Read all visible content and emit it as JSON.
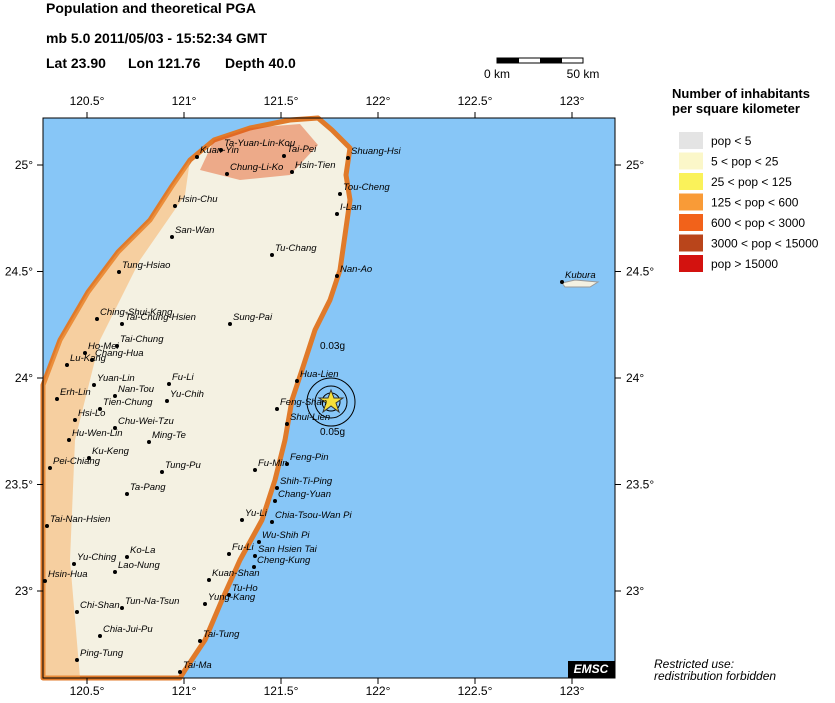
{
  "header": {
    "title": "Population and theoretical PGA",
    "event": "mb 5.0  2011/05/03 - 15:52:34 GMT",
    "lat": "Lat 23.90",
    "lon": "Lon 121.76",
    "depth": "Depth  40.0"
  },
  "scale": {
    "start": "0 km",
    "end": "50 km"
  },
  "map": {
    "lon_ticks": [
      {
        "value": 120.5,
        "label": "120.5°"
      },
      {
        "value": 121,
        "label": "121°"
      },
      {
        "value": 121.5,
        "label": "121.5°"
      },
      {
        "value": 122,
        "label": "122°"
      },
      {
        "value": 122.5,
        "label": "122.5°"
      },
      {
        "value": 123,
        "label": "123°"
      }
    ],
    "lat_ticks": [
      {
        "value": 25,
        "label": "25°"
      },
      {
        "value": 24.5,
        "label": "24.5°"
      },
      {
        "value": 24,
        "label": "24°"
      },
      {
        "value": 23.5,
        "label": "23.5°"
      },
      {
        "value": 23,
        "label": "23°"
      }
    ],
    "cities": [
      "Ta-Yuan-Lin-Kou",
      "Kuan-Yin",
      "Tai-Pei",
      "Hsin-Tien",
      "Chung-Li-Ko",
      "Shuang-Hsi",
      "Tou-Cheng",
      "I-Lan",
      "Hsin-Chu",
      "San-Wan",
      "Tu-Chang",
      "Nan-Ao",
      "Tung-Hsiao",
      "Kubura",
      "Ching-Shui-Kang",
      "Tai-Chung-Hsien",
      "Sung-Pai",
      "Tai-Chung",
      "Ho-Mei",
      "Chang-Hua",
      "Lu-Kang",
      "Hua-Lien",
      "Fu-Li",
      "Yuan-Lin",
      "Nan-Tou",
      "Yu-Chih",
      "Erh-Lin",
      "Tien-Chung",
      "Feng-Shan",
      "Shui-Lien",
      "Hsi-Lo",
      "Chu-Wei-Tzu",
      "Hu-Wen-Lin",
      "Ming-Te",
      "Ku-Keng",
      "Feng-Pin",
      "Pei-Chiang",
      "Tung-Pu",
      "Fu-Min",
      "Shih-Ti-Ping",
      "Ta-Pang",
      "Chang-Yuan",
      "Tai-Nan-Hsien",
      "Yu-Li",
      "Chia-Tsou-Wan Pi",
      "Wu-Shih Pi",
      "Ko-La",
      "Yu-Ching",
      "Fu-Li",
      "San Hsien Tai",
      "Cheng-Kung",
      "Lao-Nung",
      "Hsin-Hua",
      "Kuan-Shan",
      "Tu-Ho",
      "Tun-Na-Tsun",
      "Yung-Kang",
      "Chi-Shan",
      "Chia-Jui-Pu",
      "Tai-Tung",
      "Ping-Tung",
      "Tai-Ma"
    ],
    "pga_contours": [
      "0.03g",
      "0.05g"
    ],
    "credit": "EMSC"
  },
  "legend": {
    "title": [
      "Number of inhabitants",
      "per square kilometer"
    ],
    "items": [
      {
        "label": "pop < 5",
        "color": "#e4e4e4"
      },
      {
        "label": "5 < pop < 25",
        "color": "#fbf7c9"
      },
      {
        "label": "25 < pop < 125",
        "color": "#faf25a"
      },
      {
        "label": "125 < pop < 600",
        "color": "#f99b37"
      },
      {
        "label": "600 < pop < 3000",
        "color": "#f2621a"
      },
      {
        "label": "3000 < pop < 15000",
        "color": "#b9451b"
      },
      {
        "label": "pop > 15000",
        "color": "#d3120f"
      }
    ]
  },
  "notice": [
    "Restricted use:",
    "redistribution forbidden"
  ]
}
